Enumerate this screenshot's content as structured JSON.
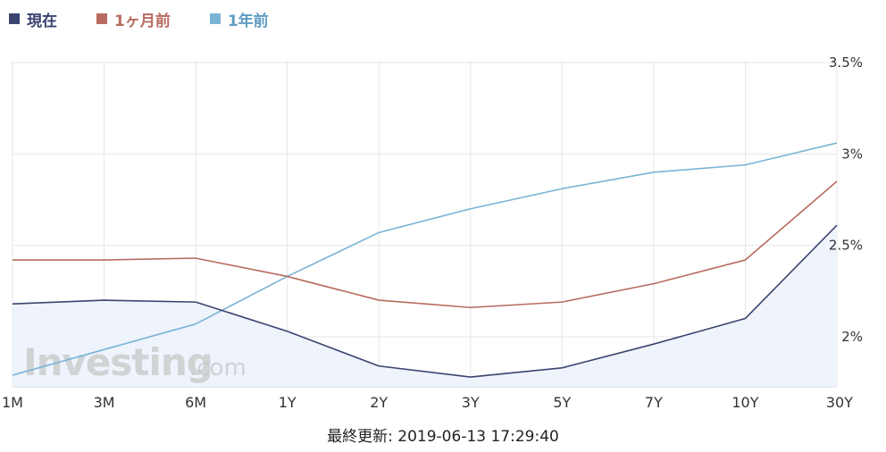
{
  "legend": {
    "current": "現在",
    "one_month": "1ヶ月前",
    "one_year": "1年前"
  },
  "colors": {
    "current": "#3b4470",
    "one_month": "#b86b60",
    "one_year": "#7ab3d6",
    "area_fill": "#eef3fc",
    "grid": "#e6e6e6"
  },
  "watermark": {
    "brand": "Investing",
    "suffix": ".com"
  },
  "footer": {
    "text": "最終更新: 2019-06-13 17:29:40"
  },
  "chart_data": {
    "type": "line",
    "categories": [
      "1M",
      "3M",
      "6M",
      "1Y",
      "2Y",
      "3Y",
      "5Y",
      "7Y",
      "10Y",
      "30Y"
    ],
    "y_ticks": [
      "2%",
      "2.5%",
      "3%",
      "3.5%"
    ],
    "y_tick_values": [
      2.0,
      2.5,
      3.0,
      3.5
    ],
    "ylim": [
      1.72,
      3.5
    ],
    "y_axis_position": "right",
    "legend_position": "top-left",
    "grid": true,
    "series": [
      {
        "key": "one_year",
        "name": "1年前",
        "values": [
          1.79,
          1.93,
          2.07,
          2.33,
          2.57,
          2.7,
          2.81,
          2.9,
          2.94,
          3.06
        ]
      },
      {
        "key": "one_month",
        "name": "1ヶ月前",
        "values": [
          2.42,
          2.42,
          2.43,
          2.33,
          2.2,
          2.16,
          2.19,
          2.29,
          2.42,
          2.85
        ]
      },
      {
        "key": "current",
        "name": "現在",
        "values": [
          2.18,
          2.2,
          2.19,
          2.03,
          1.84,
          1.78,
          1.83,
          1.96,
          2.1,
          2.61
        ],
        "area": true
      }
    ]
  }
}
